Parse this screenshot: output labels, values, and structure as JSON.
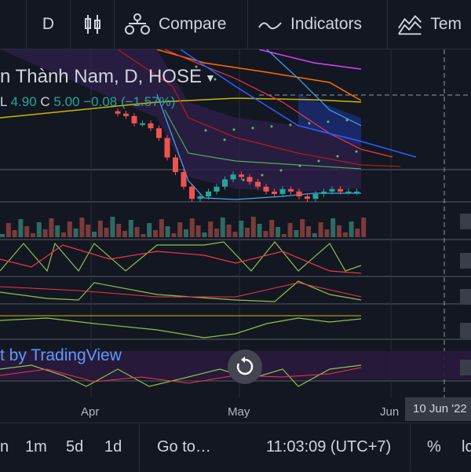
{
  "toolbar": {
    "interval": "D",
    "compare": "Compare",
    "indicators": "Indicators",
    "templates": "Tem"
  },
  "chart_data": {
    "type": "candlestick",
    "title": "n Thành Nam, D, HOSE",
    "ohlc": {
      "l_label": "L",
      "l_value": "4.90",
      "c_label": "C",
      "c_value": "5.00",
      "change": "−0.08 (−1.57%)"
    },
    "x_ticks": [
      "Apr",
      "May",
      "Jun"
    ],
    "crosshair_date": "10 Jun '22",
    "close_series": [
      6.05,
      6.0,
      5.85,
      5.85,
      5.75,
      5.55,
      5.15,
      4.85,
      4.55,
      4.3,
      4.35,
      4.45,
      4.55,
      4.7,
      4.8,
      4.75,
      4.65,
      4.55,
      4.45,
      4.4,
      4.5,
      4.45,
      4.35,
      4.3,
      4.4,
      4.45,
      4.5,
      4.45,
      4.45,
      4.45
    ]
  },
  "watermark": "t by TradingView",
  "bottom": {
    "ranges": [
      "n",
      "1m",
      "5d",
      "1d"
    ],
    "goto": "Go to…",
    "clock": "11:03:09 (UTC+7)",
    "percent": "%",
    "log": "lo"
  }
}
